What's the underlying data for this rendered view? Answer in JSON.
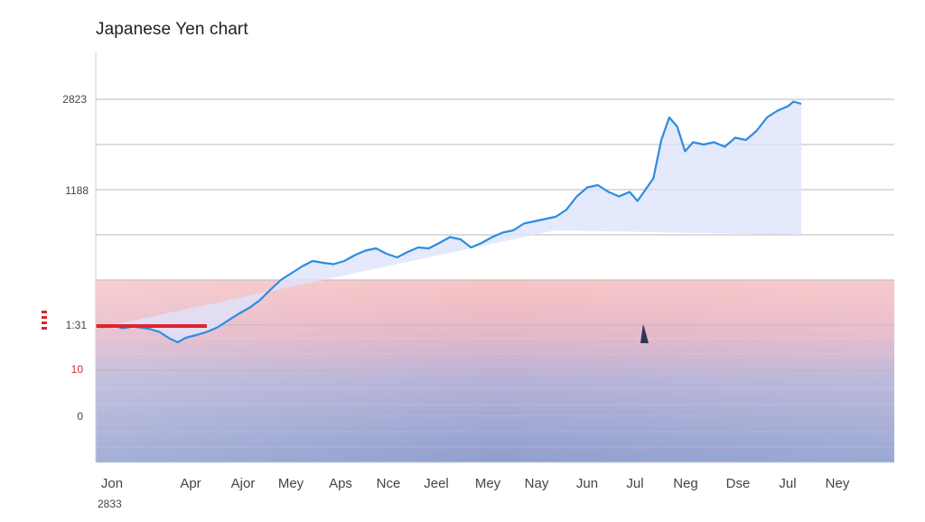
{
  "header": {
    "title": "Japanese Yen chart"
  },
  "chart_data": {
    "type": "line",
    "title": "Japanese Yen chart",
    "ylabel": "",
    "y_tick_labels": [
      "2823",
      "1188",
      "1:31",
      "10",
      "0"
    ],
    "y_side_marks": [
      "1:31"
    ],
    "x_tick_labels": [
      "Jon",
      "Apr",
      "Ajor",
      "Mey",
      "Aps",
      "Nce",
      "Jeel",
      "Mey",
      "Nay",
      "Jun",
      "Jul",
      "Neg",
      "Dse",
      "Jul",
      "Ney"
    ],
    "x_year_label": "2833",
    "ylim": [
      -1,
      6
    ],
    "grid": true,
    "colors": {
      "line": "#2b8de0",
      "baseline": "#e3222a",
      "area": "#dfe4fb",
      "band_top": "#f7c5c5",
      "band_bottom": "#8f9fcf"
    },
    "baseline_value": 0.98,
    "series": [
      {
        "values": [
          [
            0,
            0.95
          ],
          [
            0.2,
            1.0
          ],
          [
            0.4,
            0.93
          ],
          [
            0.6,
            0.97
          ],
          [
            0.9,
            0.92
          ],
          [
            1.1,
            0.85
          ],
          [
            1.3,
            0.7
          ],
          [
            1.45,
            0.62
          ],
          [
            1.6,
            0.72
          ],
          [
            1.8,
            0.78
          ],
          [
            2.0,
            0.85
          ],
          [
            2.2,
            0.95
          ],
          [
            2.4,
            1.1
          ],
          [
            2.6,
            1.25
          ],
          [
            2.8,
            1.38
          ],
          [
            3.0,
            1.55
          ],
          [
            3.2,
            1.78
          ],
          [
            3.4,
            2.0
          ],
          [
            3.6,
            2.15
          ],
          [
            3.8,
            2.3
          ],
          [
            4.0,
            2.42
          ],
          [
            4.2,
            2.38
          ],
          [
            4.4,
            2.35
          ],
          [
            4.6,
            2.42
          ],
          [
            4.8,
            2.55
          ],
          [
            5.0,
            2.65
          ],
          [
            5.2,
            2.7
          ],
          [
            5.4,
            2.58
          ],
          [
            5.6,
            2.5
          ],
          [
            5.8,
            2.62
          ],
          [
            6.0,
            2.72
          ],
          [
            6.2,
            2.7
          ],
          [
            6.4,
            2.82
          ],
          [
            6.6,
            2.95
          ],
          [
            6.8,
            2.9
          ],
          [
            7.0,
            2.72
          ],
          [
            7.2,
            2.82
          ],
          [
            7.4,
            2.95
          ],
          [
            7.6,
            3.05
          ],
          [
            7.8,
            3.1
          ],
          [
            8.0,
            3.25
          ],
          [
            8.2,
            3.3
          ],
          [
            8.4,
            3.35
          ],
          [
            8.6,
            3.4
          ],
          [
            8.8,
            3.55
          ],
          [
            9.0,
            3.85
          ],
          [
            9.2,
            4.05
          ],
          [
            9.4,
            4.1
          ],
          [
            9.6,
            3.95
          ],
          [
            9.8,
            3.85
          ],
          [
            10.0,
            3.95
          ],
          [
            10.15,
            3.75
          ],
          [
            10.3,
            4.0
          ],
          [
            10.45,
            4.25
          ],
          [
            10.6,
            5.1
          ],
          [
            10.75,
            5.6
          ],
          [
            10.9,
            5.4
          ],
          [
            11.05,
            4.85
          ],
          [
            11.2,
            5.05
          ],
          [
            11.4,
            5.0
          ],
          [
            11.6,
            5.05
          ],
          [
            11.8,
            4.95
          ],
          [
            12.0,
            5.15
          ],
          [
            12.2,
            5.1
          ],
          [
            12.4,
            5.3
          ],
          [
            12.6,
            5.6
          ],
          [
            12.8,
            5.75
          ],
          [
            13.0,
            5.85
          ],
          [
            13.1,
            5.95
          ],
          [
            13.25,
            5.9
          ]
        ]
      }
    ]
  }
}
